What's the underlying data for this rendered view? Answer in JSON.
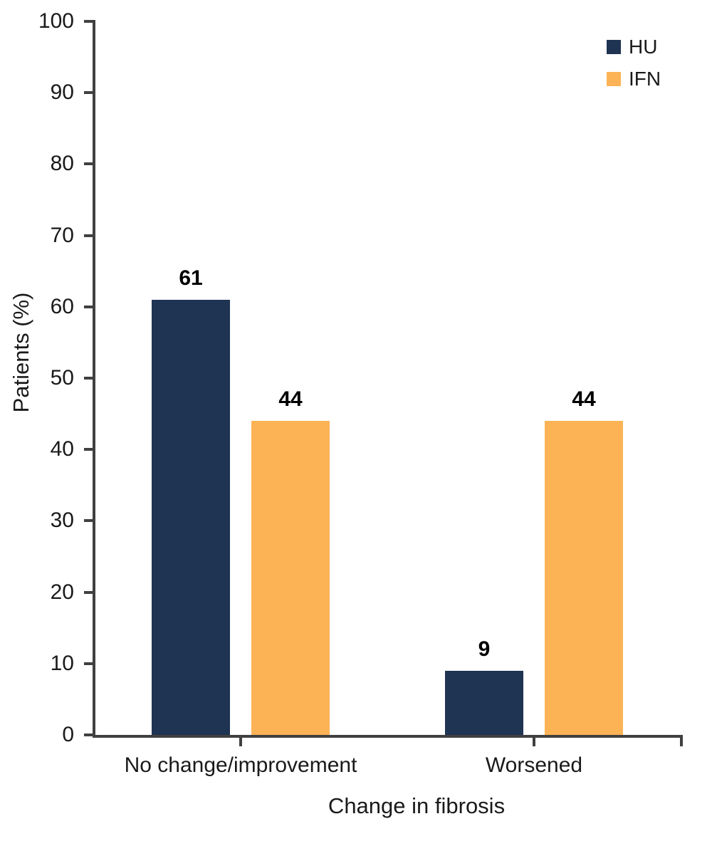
{
  "chart_data": {
    "type": "bar",
    "title": "",
    "categories": [
      "No change/improvement",
      "Worsened"
    ],
    "series": [
      {
        "name": "HU",
        "color": "#1F3353",
        "values": [
          61,
          9
        ]
      },
      {
        "name": "IFN",
        "color": "#FCB355",
        "values": [
          44,
          44
        ]
      }
    ],
    "xlabel": "Change in fibrosis",
    "ylabel": "Patients (%)",
    "ylim": [
      0,
      100
    ],
    "yticks": [
      0,
      10,
      20,
      30,
      40,
      50,
      60,
      70,
      80,
      90,
      100
    ],
    "grid": false,
    "legend_position": "top-right",
    "bar_value_labels": true,
    "axis_color": "#404040",
    "text_color": "#1a1a1a"
  }
}
